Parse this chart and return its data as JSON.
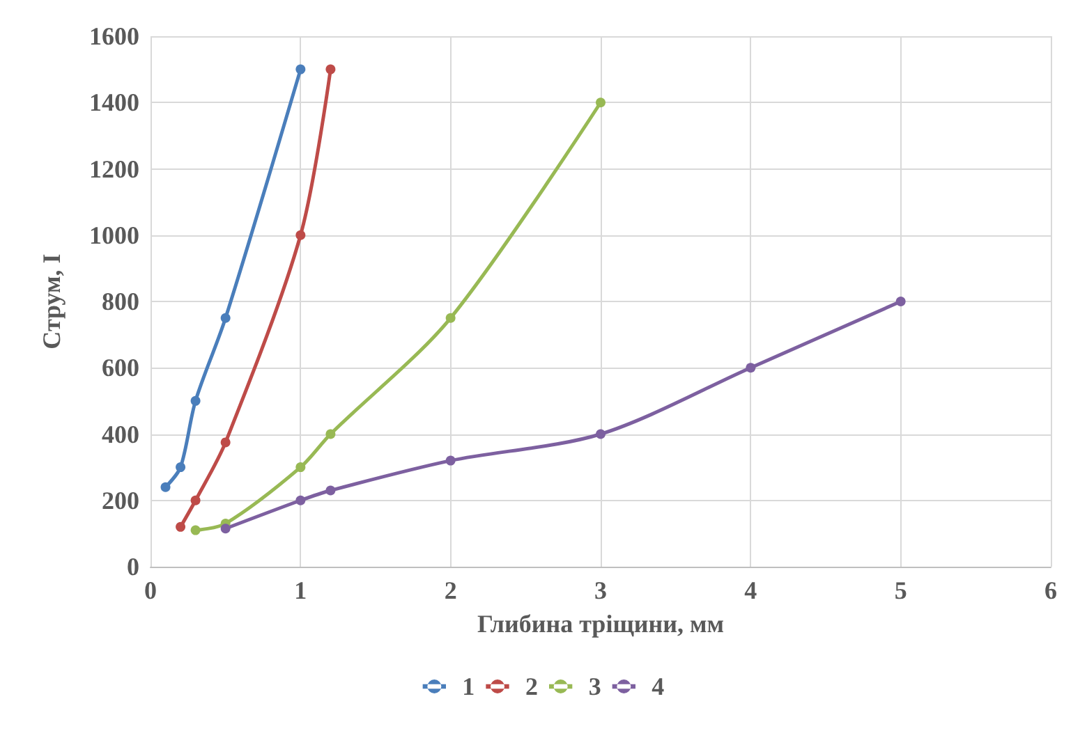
{
  "chart_data": {
    "type": "line",
    "xlabel": "Глибина тріщини, мм",
    "ylabel": "Струм, І",
    "xlim": [
      0,
      6
    ],
    "xticks": [
      0,
      1,
      2,
      3,
      4,
      5,
      6
    ],
    "ylim": [
      0,
      1600
    ],
    "yticks": [
      0,
      200,
      400,
      600,
      800,
      1000,
      1200,
      1400,
      1600
    ],
    "grid": true,
    "legend": "bottom",
    "marker": "circle",
    "line_style": "solid",
    "series": [
      {
        "name": "1",
        "color": "#4a7ebb",
        "x": [
          0.1,
          0.2,
          0.3,
          0.5,
          1
        ],
        "values": [
          240,
          300,
          500,
          750,
          1500
        ]
      },
      {
        "name": "2",
        "color": "#be4b48",
        "x": [
          0.2,
          0.3,
          0.5,
          1,
          1.2
        ],
        "values": [
          120,
          200,
          375,
          1000,
          1500
        ]
      },
      {
        "name": "3",
        "color": "#98b954",
        "x": [
          0.3,
          0.5,
          1,
          1.2,
          2,
          3
        ],
        "values": [
          110,
          130,
          300,
          400,
          750,
          1400
        ]
      },
      {
        "name": "4",
        "color": "#7d60a0",
        "x": [
          0.5,
          1,
          1.2,
          2,
          3,
          4,
          5
        ],
        "values": [
          115,
          200,
          230,
          320,
          400,
          600,
          800
        ]
      }
    ]
  }
}
